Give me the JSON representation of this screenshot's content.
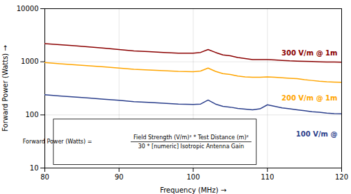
{
  "chart_data": {
    "type": "line",
    "xlabel": "Frequency (MHz)",
    "ylabel": "Forward Power (Watts)",
    "log": "y",
    "grid": true,
    "xlim": [
      80,
      120
    ],
    "xticks": [
      80,
      90,
      100,
      110,
      120
    ],
    "ylim": [
      10,
      10000
    ],
    "yticks": [
      10,
      100,
      1000,
      10000
    ],
    "x": [
      80,
      82,
      84,
      86,
      88,
      90,
      92,
      94,
      96,
      98,
      100,
      101,
      102,
      103,
      104,
      105,
      106,
      107,
      108,
      109,
      110,
      111,
      112,
      113,
      114,
      115,
      116,
      117,
      118,
      119,
      120
    ],
    "series": [
      {
        "name": "300 V/m @ 1m",
        "color": "#8B0000",
        "values": [
          2200,
          2100,
          2000,
          1900,
          1800,
          1700,
          1600,
          1550,
          1500,
          1450,
          1450,
          1500,
          1700,
          1500,
          1350,
          1300,
          1200,
          1150,
          1100,
          1100,
          1100,
          1080,
          1060,
          1040,
          1030,
          1020,
          1010,
          1000,
          990,
          990,
          980
        ]
      },
      {
        "name": "200 V/m @ 1m",
        "color": "#FFA500",
        "values": [
          970,
          920,
          880,
          840,
          800,
          760,
          720,
          700,
          680,
          660,
          650,
          670,
          760,
          660,
          600,
          575,
          540,
          520,
          510,
          510,
          520,
          510,
          500,
          490,
          480,
          460,
          445,
          430,
          420,
          415,
          410
        ]
      },
      {
        "name": "100 V/m @",
        "color": "#2B3F8C",
        "values": [
          240,
          228,
          218,
          207,
          197,
          188,
          178,
          172,
          166,
          160,
          157,
          160,
          190,
          160,
          145,
          140,
          132,
          128,
          125,
          130,
          155,
          145,
          135,
          130,
          125,
          120,
          115,
          112,
          108,
          106,
          105
        ]
      }
    ],
    "annotations": [
      "Forward Power (Watts) = ",
      "Field Strength (V/m)² * Test Distance (m)²",
      "30 * [numeric] Isotropic Antenna Gain"
    ]
  }
}
